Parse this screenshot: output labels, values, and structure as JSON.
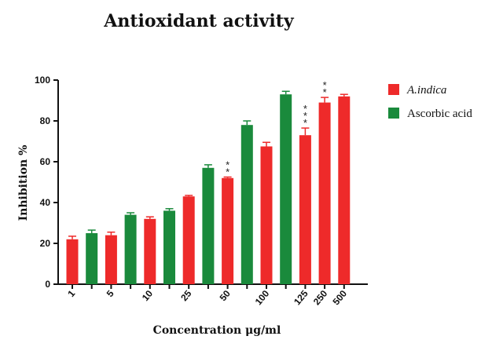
{
  "chart_data": {
    "type": "bar",
    "title": "Antioxidant activity",
    "xlabel": "Concentration μg/ml",
    "ylabel": "Inhibition %",
    "ylim": [
      0,
      100
    ],
    "yticks": [
      "0",
      "20",
      "40",
      "60",
      "80",
      "100"
    ],
    "grid": false,
    "legend_position": "top-right",
    "colors": {
      "A.indica": "#ee2a2a",
      "Ascorbic acid": "#1a8a3c"
    },
    "bars": [
      {
        "category": "1",
        "series": "A.indica",
        "value": 22,
        "error": 1.5,
        "sig": ""
      },
      {
        "category": "",
        "series": "Ascorbic acid",
        "value": 25,
        "error": 1.5,
        "sig": ""
      },
      {
        "category": "5",
        "series": "A.indica",
        "value": 24,
        "error": 1.5,
        "sig": ""
      },
      {
        "category": "",
        "series": "Ascorbic acid",
        "value": 34,
        "error": 1,
        "sig": ""
      },
      {
        "category": "10",
        "series": "A.indica",
        "value": 32,
        "error": 1,
        "sig": ""
      },
      {
        "category": "",
        "series": "Ascorbic acid",
        "value": 36,
        "error": 1,
        "sig": ""
      },
      {
        "category": "25",
        "series": "A.indica",
        "value": 43,
        "error": 0.5,
        "sig": ""
      },
      {
        "category": "",
        "series": "Ascorbic acid",
        "value": 57,
        "error": 1.5,
        "sig": ""
      },
      {
        "category": "50",
        "series": "A.indica",
        "value": 52,
        "error": 0.5,
        "sig": "**"
      },
      {
        "category": "",
        "series": "Ascorbic acid",
        "value": 78,
        "error": 2,
        "sig": ""
      },
      {
        "category": "100",
        "series": "A.indica",
        "value": 67.5,
        "error": 2,
        "sig": ""
      },
      {
        "category": "",
        "series": "Ascorbic acid",
        "value": 93,
        "error": 1.5,
        "sig": ""
      },
      {
        "category": "125",
        "series": "A.indica",
        "value": 73,
        "error": 3.5,
        "sig": "***"
      },
      {
        "category": "250",
        "series": "A.indica",
        "value": 89,
        "error": 2.5,
        "sig": "**"
      },
      {
        "category": "500",
        "series": "A.indica",
        "value": 92,
        "error": 1,
        "sig": ""
      }
    ],
    "legend": [
      {
        "label": "A.indica",
        "italic": true
      },
      {
        "label": "Ascorbic acid",
        "italic": false
      }
    ]
  }
}
